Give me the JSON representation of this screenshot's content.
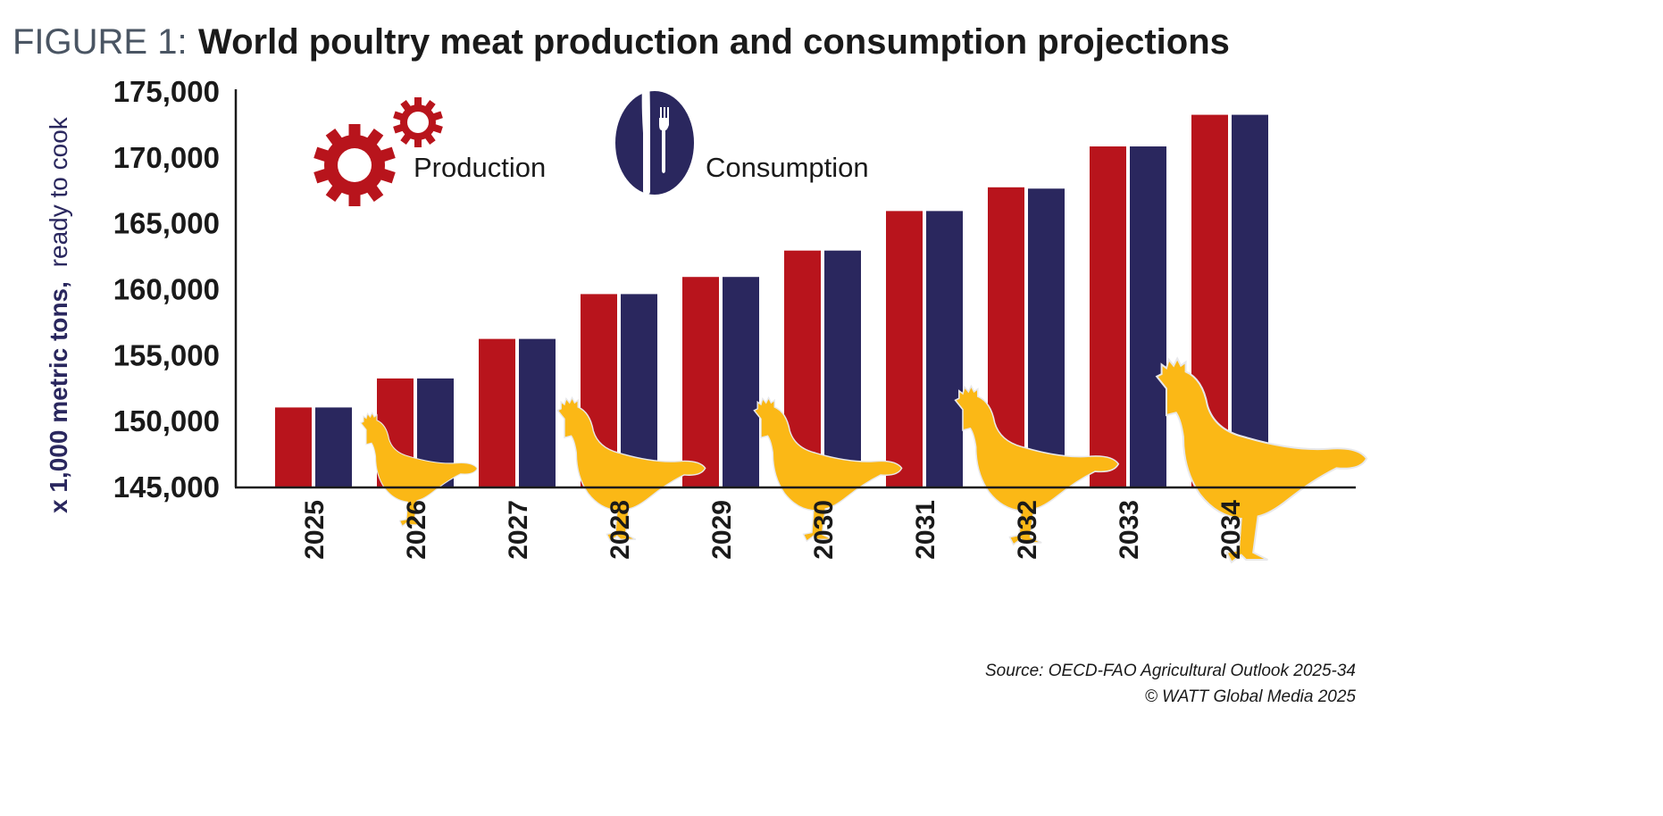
{
  "title": {
    "prefix": "FIGURE 1:",
    "main": "World poultry meat production and consumption projections"
  },
  "source": "Source: OECD-FAO Agricultural Outlook 2025-34",
  "copyright": "© WATT Global Media 2025",
  "chart_data": {
    "type": "bar",
    "title": "World poultry meat production and consumption projections",
    "ylabel": {
      "bold": "x 1,000 metric tons,",
      "normal": "ready to cook"
    },
    "xlabel": "",
    "ylim": [
      145000,
      175000
    ],
    "yticks": [
      145000,
      150000,
      155000,
      160000,
      165000,
      170000,
      175000
    ],
    "ytick_labels": [
      "145,000",
      "150,000",
      "155,000",
      "160,000",
      "165,000",
      "170,000",
      "175,000"
    ],
    "grid": false,
    "legend": "top-left",
    "categories": [
      "2025",
      "2026",
      "2027",
      "2028",
      "2029",
      "2030",
      "2031",
      "2032",
      "2033",
      "2034"
    ],
    "series": [
      {
        "name": "Production",
        "color": "#b8141c",
        "icon": "gears-icon",
        "values": [
          151000,
          153200,
          156200,
          159600,
          160900,
          162900,
          165900,
          167700,
          170800,
          173200
        ]
      },
      {
        "name": "Consumption",
        "color": "#2a275e",
        "icon": "knife-fork-icon",
        "values": [
          151000,
          153200,
          156200,
          159600,
          160900,
          162900,
          165900,
          167600,
          170800,
          173200
        ]
      }
    ],
    "decoration_color": "#fbb816"
  }
}
